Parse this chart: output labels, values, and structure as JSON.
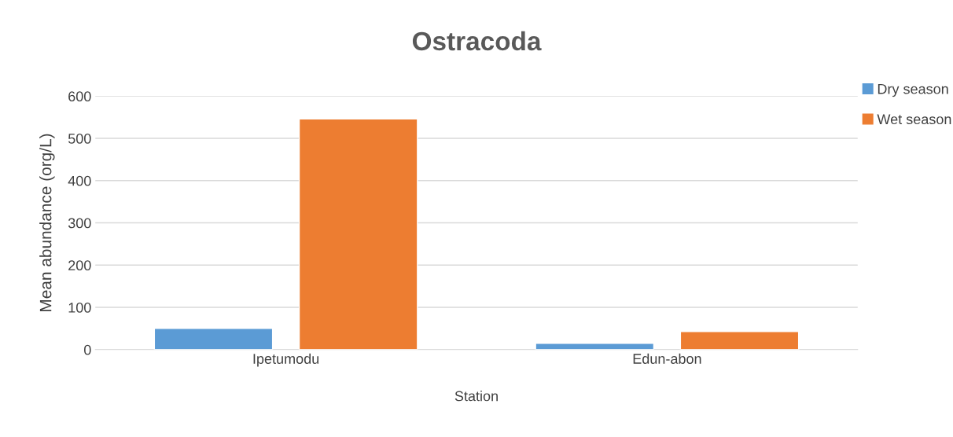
{
  "chart_data": {
    "type": "bar",
    "title": "Ostracoda",
    "xlabel": "Station",
    "ylabel": "Mean abundance (org/L)",
    "categories": [
      "Ipetumodu",
      "Edun-abon"
    ],
    "series": [
      {
        "name": "Dry season",
        "color": "#5b9bd5",
        "values": [
          50,
          15
        ]
      },
      {
        "name": "Wet season",
        "color": "#ed7d31",
        "values": [
          546,
          43
        ]
      }
    ],
    "ylim": [
      0,
      600
    ],
    "yticks": [
      0,
      100,
      200,
      300,
      400,
      500,
      600
    ],
    "grid": "y",
    "legend": "top right"
  }
}
